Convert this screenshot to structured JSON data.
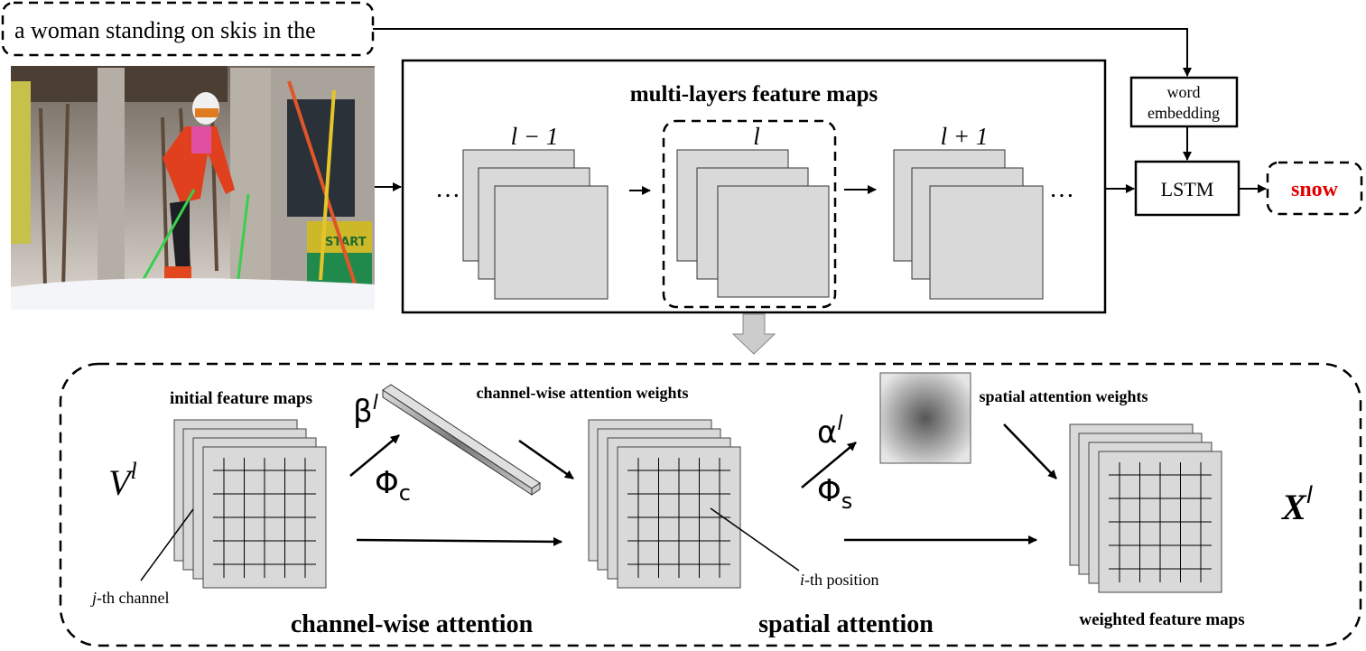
{
  "caption_input": "a woman standing on skis in the",
  "photo": {
    "content": "skier",
    "sign_text": "START"
  },
  "feature_maps_box": {
    "title": "multi-layers feature maps",
    "layers": [
      {
        "label": "l − 1"
      },
      {
        "label": "l"
      },
      {
        "label": "l + 1"
      }
    ],
    "ellipsis": "…"
  },
  "word_embedding": {
    "line1": "word",
    "line2": "embedding"
  },
  "lstm": "LSTM",
  "output_word": "snow",
  "output_color": "#e00000",
  "attention": {
    "initial_maps_label": "initial feature maps",
    "V": "V",
    "V_sup": "l",
    "j_channel": {
      "var": "j",
      "text": "-th channel"
    },
    "beta": "β",
    "beta_sup": "l",
    "phi_c": "Φ",
    "phi_c_sub": "c",
    "channel_weights_label": "channel-wise attention weights",
    "channel_title": "channel-wise attention",
    "alpha": "α",
    "alpha_sup": "l",
    "phi_s": "Φ",
    "phi_s_sub": "s",
    "spatial_weights_label": "spatial attention weights",
    "i_position": {
      "var": "i",
      "text": "-th position"
    },
    "spatial_title": "spatial attention",
    "weighted_maps_label": "weighted feature maps",
    "X": "X",
    "X_sup": "l"
  }
}
